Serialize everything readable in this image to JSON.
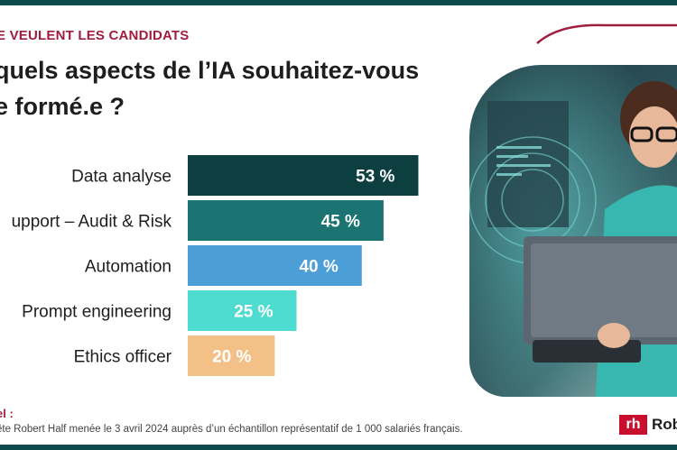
{
  "header": {
    "kicker": "E VEULENT LES CANDIDATS",
    "title_line1": "quels aspects de l’IA souhaitez-vous",
    "title_line2": "e formé.e ?"
  },
  "chart_data": {
    "type": "bar",
    "orientation": "horizontal",
    "categories": [
      "Data analyse",
      "upport – Audit & Risk",
      "Automation",
      "Prompt engineering",
      "Ethics officer"
    ],
    "values": [
      53,
      45,
      40,
      25,
      20
    ],
    "value_labels": [
      "53 %",
      "45 %",
      "40 %",
      "25 %",
      "20 %"
    ],
    "colors": [
      "#0d3f40",
      "#1b7472",
      "#4b9fd6",
      "#4fdcd0",
      "#f3c188"
    ],
    "xlim": [
      0,
      100
    ],
    "title": "",
    "xlabel": "",
    "ylabel": ""
  },
  "footer": {
    "label": "el :",
    "text": "ête Robert Half menée le 3 avril 2024 auprès d’un échantillon représentatif de 1 000 salariés français."
  },
  "brand": {
    "logo_mark": "rh",
    "logo_text": "Rob",
    "accent_color": "#a01d42"
  }
}
